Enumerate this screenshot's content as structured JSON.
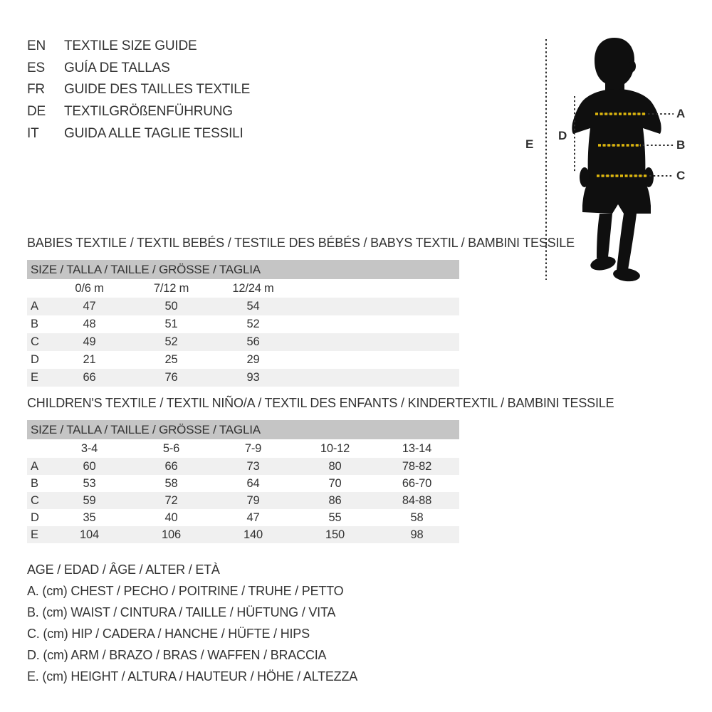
{
  "page": {
    "background": "#ffffff",
    "text_color": "#333333",
    "colors": {
      "table_header_bg": "#c5c5c5",
      "row_stripe": "#f0f0f0",
      "silhouette": "#0f0f0f",
      "measure_dash_yellow": "#ddb60d",
      "measure_dash_black": "#2f2f2f"
    }
  },
  "languages": [
    {
      "code": "EN",
      "title": "TEXTILE SIZE GUIDE"
    },
    {
      "code": "ES",
      "title": "GUÍA DE TALLAS"
    },
    {
      "code": "FR",
      "title": "GUIDE DES TAILLES TEXTILE"
    },
    {
      "code": "DE",
      "title": "TEXTILGRÖßENFÜHRUNG"
    },
    {
      "code": "IT",
      "title": "GUIDA ALLE TAGLIE TESSILI"
    }
  ],
  "figure": {
    "description": "child-silhouette-with-measure-lines",
    "callouts": {
      "a": "A",
      "b": "B",
      "c": "C",
      "d": "D",
      "e": "E"
    }
  },
  "babies_table": {
    "title": "BABIES TEXTILE / TEXTIL BEBÉS / TESTILE DES BÉBÉS / BABYS TEXTIL / BAMBINI TESSILE",
    "header": "SIZE / TALLA / TAILLE / GRÖSSE / TAGLIA",
    "columns": [
      "0/6 m",
      "7/12 m",
      "12/24 m"
    ],
    "rows": [
      {
        "label": "A",
        "values": [
          "47",
          "50",
          "54"
        ]
      },
      {
        "label": "B",
        "values": [
          "48",
          "51",
          "52"
        ]
      },
      {
        "label": "C",
        "values": [
          "49",
          "52",
          "56"
        ]
      },
      {
        "label": "D",
        "values": [
          "21",
          "25",
          "29"
        ]
      },
      {
        "label": "E",
        "values": [
          "66",
          "76",
          "93"
        ]
      }
    ]
  },
  "children_table": {
    "title": "CHILDREN'S TEXTILE / TEXTIL NIÑO/A / TEXTIL DES ENFANTS / KINDERTEXTIL / BAMBINI TESSILE",
    "header": "SIZE / TALLA / TAILLE / GRÖSSE / TAGLIA",
    "columns": [
      "3-4",
      "5-6",
      "7-9",
      "10-12",
      "13-14"
    ],
    "rows": [
      {
        "label": "A",
        "values": [
          "60",
          "66",
          "73",
          "80",
          "78-82"
        ]
      },
      {
        "label": "B",
        "values": [
          "53",
          "58",
          "64",
          "70",
          "66-70"
        ]
      },
      {
        "label": "C",
        "values": [
          "59",
          "72",
          "79",
          "86",
          "84-88"
        ]
      },
      {
        "label": "D",
        "values": [
          "35",
          "40",
          "47",
          "55",
          "58"
        ]
      },
      {
        "label": "E",
        "values": [
          "104",
          "106",
          "140",
          "150",
          "98"
        ]
      }
    ]
  },
  "legend": [
    "AGE / EDAD / ÂGE / ALTER / ETÀ",
    "A. (cm) CHEST / PECHO / POITRINE / TRUHE / PETTO",
    "B. (cm) WAIST / CINTURA / TAILLE / HÜFTUNG / VITA",
    "C. (cm) HIP / CADERA / HANCHE / HÜFTE / HIPS",
    "D. (cm) ARM / BRAZO / BRAS / WAFFEN / BRACCIA",
    "E. (cm) HEIGHT / ALTURA / HAUTEUR / HÖHE / ALTEZZA"
  ]
}
